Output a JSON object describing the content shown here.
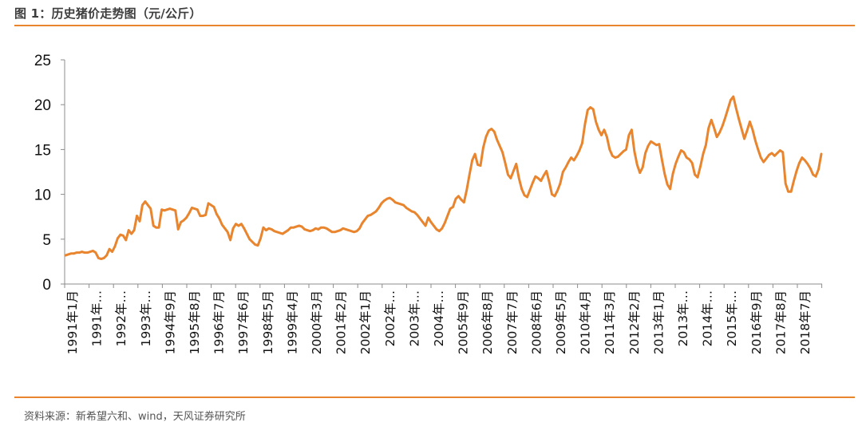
{
  "header": {
    "title": "图 1：历史猪价走势图（元/公斤）"
  },
  "footer": {
    "source": "资料来源：新希望六和、wind，天风证券研究所"
  },
  "colors": {
    "accent": "#e8852e",
    "line": "#e8852e",
    "axis": "#8c8c8c",
    "text": "#111111"
  },
  "chart_data": {
    "type": "line",
    "title": "历史猪价走势图（元/公斤）",
    "xlabel": "",
    "ylabel": "",
    "ylim": [
      0,
      25
    ],
    "yticks": [
      "0",
      "5",
      "10",
      "15",
      "20",
      "25"
    ],
    "grid": false,
    "legend": "none",
    "xtick_labels": [
      "1991年1月",
      "1991年…",
      "1992年…",
      "1993年…",
      "1994年9月",
      "1995年8月",
      "1996年7月",
      "1997年6月",
      "1998年5月",
      "1999年4月",
      "2000年3月",
      "2001年2月",
      "2002年1月",
      "2002年…",
      "2003年…",
      "2004年…",
      "2005年9月",
      "2006年8月",
      "2007年7月",
      "2008年6月",
      "2009年5月",
      "2010年4月",
      "2011年3月",
      "2012年2月",
      "2013年1月",
      "2013年…",
      "2014年…",
      "2015年…",
      "2016年9月",
      "2017年8月",
      "2018年7月"
    ],
    "series": [
      {
        "name": "猪价",
        "values": [
          3.2,
          3.3,
          3.4,
          3.4,
          3.5,
          3.5,
          3.6,
          3.5,
          3.5,
          3.6,
          3.7,
          3.5,
          2.9,
          2.8,
          2.9,
          3.2,
          3.9,
          3.6,
          4.2,
          5.1,
          5.5,
          5.4,
          4.9,
          6.0,
          5.6,
          6.0,
          7.6,
          7.0,
          8.8,
          9.2,
          8.8,
          8.4,
          6.5,
          6.3,
          6.3,
          8.3,
          8.2,
          8.3,
          8.4,
          8.3,
          8.2,
          6.1,
          6.9,
          7.1,
          7.4,
          7.9,
          8.5,
          8.4,
          8.3,
          7.6,
          7.6,
          7.7,
          9.0,
          8.8,
          8.6,
          7.8,
          7.3,
          6.6,
          6.2,
          5.8,
          4.9,
          6.2,
          6.7,
          6.5,
          6.7,
          6.2,
          5.6,
          5.0,
          4.7,
          4.4,
          4.3,
          5.1,
          6.3,
          6.0,
          6.2,
          6.1,
          5.9,
          5.8,
          5.7,
          5.6,
          5.8,
          6.0,
          6.3,
          6.3,
          6.4,
          6.5,
          6.4,
          6.1,
          6.0,
          5.9,
          6.0,
          6.2,
          6.1,
          6.3,
          6.3,
          6.2,
          6.0,
          5.8,
          5.8,
          5.9,
          6.0,
          6.2,
          6.1,
          6.0,
          5.9,
          5.8,
          5.9,
          6.2,
          6.8,
          7.2,
          7.6,
          7.7,
          7.9,
          8.1,
          8.5,
          9.0,
          9.3,
          9.5,
          9.6,
          9.4,
          9.1,
          9.0,
          8.9,
          8.8,
          8.5,
          8.3,
          8.1,
          8.0,
          7.7,
          7.3,
          6.9,
          6.5,
          7.4,
          6.9,
          6.5,
          6.1,
          5.9,
          6.2,
          6.8,
          7.6,
          8.4,
          8.6,
          9.5,
          9.8,
          9.4,
          9.1,
          10.5,
          12.2,
          13.8,
          14.5,
          13.3,
          13.2,
          15.2,
          16.4,
          17.1,
          17.3,
          17.0,
          16.1,
          15.4,
          14.7,
          13.5,
          12.2,
          11.8,
          12.6,
          13.4,
          11.8,
          10.6,
          9.9,
          9.7,
          10.5,
          11.3,
          12.0,
          11.8,
          11.5,
          12.1,
          12.6,
          11.4,
          10.0,
          9.8,
          10.4,
          11.2,
          12.5,
          13.0,
          13.6,
          14.1,
          13.8,
          14.3,
          14.9,
          15.7,
          17.8,
          19.4,
          19.7,
          19.5,
          18.1,
          17.2,
          16.6,
          17.2,
          16.4,
          15.0,
          14.3,
          14.1,
          14.2,
          14.5,
          14.8,
          15.0,
          16.6,
          17.2,
          14.8,
          13.3,
          12.4,
          13.0,
          14.6,
          15.4,
          15.9,
          15.7,
          15.5,
          15.6,
          13.9,
          12.3,
          11.1,
          10.6,
          12.3,
          13.4,
          14.2,
          14.9,
          14.7,
          14.1,
          13.9,
          13.5,
          12.2,
          11.9,
          13.1,
          14.5,
          15.5,
          17.4,
          18.3,
          17.4,
          16.4,
          16.9,
          17.6,
          18.5,
          19.5,
          20.5,
          20.9,
          19.6,
          18.4,
          17.3,
          16.2,
          17.1,
          18.1,
          17.2,
          16.0,
          15.0,
          14.1,
          13.6,
          14.0,
          14.4,
          14.6,
          14.3,
          14.6,
          14.9,
          14.7,
          11.2,
          10.3,
          10.3,
          11.5,
          12.6,
          13.5,
          14.1,
          13.8,
          13.4,
          12.9,
          12.2,
          12.0,
          12.8,
          14.5
        ]
      }
    ]
  }
}
